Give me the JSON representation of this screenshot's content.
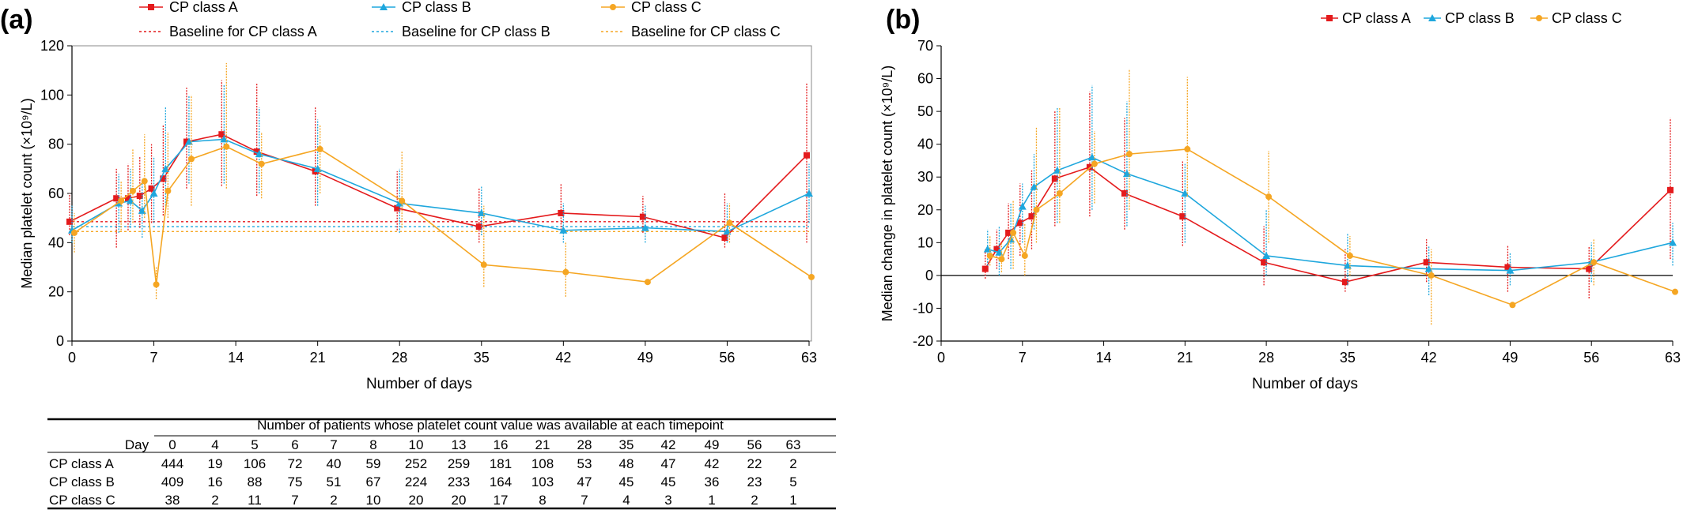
{
  "colors": {
    "A": "#e41a1c",
    "B": "#1fa7dd",
    "C": "#f5a623",
    "axis": "#000000",
    "grid": "#000000"
  },
  "chart_data": [
    {
      "type": "line",
      "panel_label": "(a)",
      "xlabel": "Number of days",
      "ylabel": "Median platelet count (×10⁹/L)",
      "xlim": [
        0,
        63
      ],
      "ylim": [
        0,
        120
      ],
      "xticks": [
        "0",
        "7",
        "14",
        "21",
        "28",
        "35",
        "42",
        "49",
        "56",
        "63"
      ],
      "yticks": [
        "0",
        "20",
        "40",
        "60",
        "80",
        "100",
        "120"
      ],
      "legend": {
        "position": "top",
        "entries": [
          "CP class A",
          "CP class B",
          "CP class C",
          "Baseline for CP class A",
          "Baseline for CP class B",
          "Baseline for CP class C"
        ]
      },
      "baselines": [
        {
          "name": "Baseline for CP class A",
          "value": 48.5,
          "color": "#e41a1c"
        },
        {
          "name": "Baseline for CP class B",
          "value": 46.5,
          "color": "#1fa7dd"
        },
        {
          "name": "Baseline for CP class C",
          "value": 44.5,
          "color": "#f5a623"
        }
      ],
      "series": [
        {
          "name": "CP class A",
          "color": "#e41a1c",
          "x": [
            0,
            4,
            5,
            6,
            7,
            8,
            10,
            13,
            16,
            21,
            28,
            35,
            42,
            49,
            56,
            63
          ],
          "y": [
            48.5,
            58,
            58,
            59,
            62,
            66,
            81,
            84,
            77,
            69,
            54,
            46.5,
            52,
            50.5,
            42,
            75.5
          ],
          "low": [
            43,
            38,
            45,
            46,
            48,
            51,
            62,
            63,
            59,
            55,
            45,
            40,
            44,
            44,
            38,
            40
          ],
          "high": [
            60,
            70,
            72,
            75,
            80,
            88,
            103,
            106,
            105,
            95,
            69,
            62,
            64,
            59,
            60,
            105
          ]
        },
        {
          "name": "CP class B",
          "color": "#1fa7dd",
          "x": [
            0,
            4,
            5,
            6,
            7,
            8,
            10,
            13,
            16,
            21,
            28,
            35,
            42,
            49,
            56,
            63
          ],
          "y": [
            45,
            56,
            57,
            53,
            60,
            70,
            81,
            82,
            76,
            70,
            56,
            52,
            45,
            46,
            44.5,
            60
          ],
          "low": [
            40,
            44,
            46,
            42,
            48,
            55,
            64,
            64,
            60,
            55,
            44,
            43,
            40,
            40,
            40,
            48
          ],
          "high": [
            55,
            68,
            70,
            65,
            75,
            95,
            100,
            104,
            95,
            90,
            70,
            63,
            56,
            55,
            56,
            72
          ]
        },
        {
          "name": "CP class C",
          "color": "#f5a623",
          "x": [
            0,
            4,
            5,
            6,
            7,
            8,
            10,
            13,
            16,
            21,
            28,
            35,
            42,
            49,
            56,
            63
          ],
          "y": [
            44,
            57,
            61,
            65,
            23,
            61,
            74,
            79,
            72,
            78,
            57,
            31,
            28,
            24,
            48,
            26
          ],
          "low": [
            36,
            45,
            48,
            50,
            17,
            50,
            55,
            62,
            58,
            60,
            46,
            22,
            18,
            24,
            40,
            26
          ],
          "high": [
            52,
            65,
            78,
            84,
            30,
            85,
            100,
            113,
            85,
            88,
            77,
            55,
            40,
            24,
            56,
            26
          ]
        }
      ]
    },
    {
      "type": "line",
      "panel_label": "(b)",
      "xlabel": "Number of days",
      "ylabel": "Median change in platelet count (×10⁹/L)",
      "xlim": [
        0,
        63
      ],
      "ylim": [
        -20,
        70
      ],
      "xticks": [
        "0",
        "7",
        "14",
        "21",
        "28",
        "35",
        "42",
        "49",
        "56",
        "63"
      ],
      "yticks": [
        "-20",
        "-10",
        "0",
        "10",
        "20",
        "30",
        "40",
        "50",
        "60",
        "70"
      ],
      "legend": {
        "position": "top-right",
        "entries": [
          "CP class A",
          "CP class B",
          "CP class C"
        ]
      },
      "series": [
        {
          "name": "CP class A",
          "color": "#e41a1c",
          "x": [
            4,
            5,
            6,
            7,
            8,
            10,
            13,
            16,
            21,
            28,
            35,
            42,
            49,
            56,
            63
          ],
          "y": [
            2,
            8,
            13,
            16,
            18,
            29.5,
            33,
            25,
            18,
            4,
            -2,
            4,
            2.5,
            2,
            26
          ],
          "low": [
            -1,
            2,
            5,
            6,
            8,
            15,
            18,
            14,
            9,
            -3,
            -5,
            -2,
            -5,
            -7,
            5
          ],
          "high": [
            8,
            14,
            22,
            28,
            32,
            50,
            56,
            48,
            35,
            15,
            8,
            11,
            9,
            9,
            48
          ]
        },
        {
          "name": "CP class B",
          "color": "#1fa7dd",
          "x": [
            4,
            5,
            6,
            7,
            8,
            10,
            13,
            16,
            21,
            28,
            35,
            42,
            49,
            56,
            63
          ],
          "y": [
            8,
            7,
            11,
            21,
            27,
            32,
            36,
            31,
            25,
            6,
            3,
            2,
            1.5,
            4,
            10
          ],
          "low": [
            3,
            0,
            2,
            10,
            14,
            16,
            20,
            15,
            10,
            0,
            -3,
            -6,
            -3,
            -2,
            3
          ],
          "high": [
            14,
            15,
            22,
            28,
            37,
            51,
            58,
            53,
            34,
            20,
            13,
            9,
            7,
            10,
            16
          ]
        },
        {
          "name": "CP class C",
          "color": "#f5a623",
          "x": [
            4,
            5,
            6,
            7,
            8,
            10,
            13,
            16,
            21,
            28,
            35,
            42,
            49,
            56,
            63
          ],
          "y": [
            6,
            5,
            13,
            6,
            20,
            25,
            34,
            37,
            38.5,
            24,
            6,
            0,
            -9,
            4,
            -5
          ],
          "low": [
            3,
            1,
            2,
            0,
            10,
            16,
            22,
            20,
            24,
            10,
            0,
            -15,
            -9,
            -3,
            -5
          ],
          "high": [
            12,
            10,
            23,
            16,
            45,
            51,
            44,
            63,
            60.5,
            38,
            12,
            8,
            -9,
            11,
            -5
          ]
        }
      ]
    },
    {
      "type": "table",
      "title": "Number of patients whose platelet count value was available at each timepoint",
      "columns": [
        "Day",
        "0",
        "4",
        "5",
        "6",
        "7",
        "8",
        "10",
        "13",
        "16",
        "21",
        "28",
        "35",
        "42",
        "49",
        "56",
        "63"
      ],
      "rows": [
        {
          "label": "CP class A",
          "values": [
            "444",
            "19",
            "106",
            "72",
            "40",
            "59",
            "252",
            "259",
            "181",
            "108",
            "53",
            "48",
            "47",
            "42",
            "22",
            "2"
          ]
        },
        {
          "label": "CP class B",
          "values": [
            "409",
            "16",
            "88",
            "75",
            "51",
            "67",
            "224",
            "233",
            "164",
            "103",
            "47",
            "45",
            "45",
            "36",
            "23",
            "5"
          ]
        },
        {
          "label": "CP class C",
          "values": [
            "38",
            "2",
            "11",
            "7",
            "2",
            "10",
            "20",
            "20",
            "17",
            "8",
            "7",
            "4",
            "3",
            "1",
            "2",
            "1"
          ]
        }
      ]
    }
  ]
}
